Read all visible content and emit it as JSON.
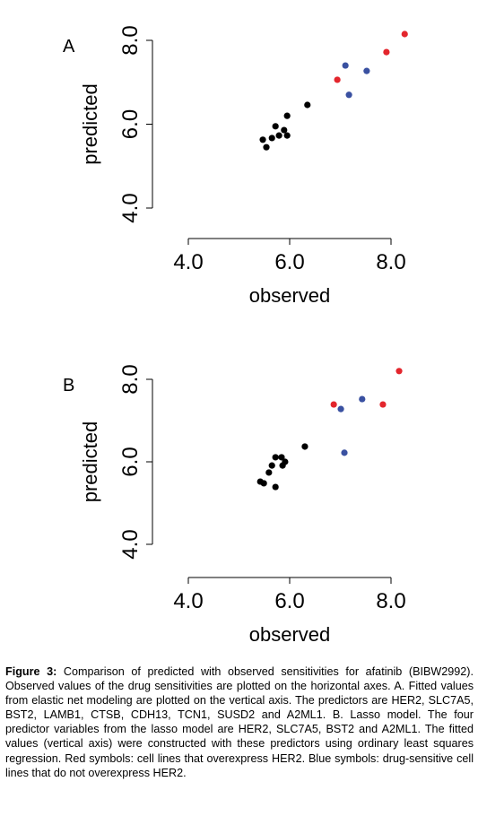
{
  "chart_data": [
    {
      "type": "scatter",
      "label": "A",
      "xlabel": "observed",
      "ylabel": "predicted",
      "xlim": [
        4,
        8
      ],
      "ylim": [
        4,
        8
      ],
      "xticks": [
        {
          "value": 4,
          "label": "4.0"
        },
        {
          "value": 6,
          "label": "6.0"
        },
        {
          "value": 8,
          "label": "8.0"
        }
      ],
      "yticks": [
        {
          "value": 4,
          "label": "4.0"
        },
        {
          "value": 6,
          "label": "6.0"
        },
        {
          "value": 8,
          "label": "8.0"
        }
      ],
      "series": [
        {
          "color": "#e3262d",
          "x": [
            8.27,
            7.91,
            6.94
          ],
          "values": [
            8.15,
            7.72,
            7.06
          ]
        },
        {
          "color": "#3a51a1",
          "x": [
            7.1,
            7.52,
            7.17
          ],
          "values": [
            7.4,
            7.27,
            6.7
          ]
        },
        {
          "color": "#000000",
          "x": [
            6.35,
            5.95,
            5.72,
            5.89,
            5.95,
            5.79,
            5.65,
            5.47,
            5.54
          ],
          "values": [
            6.46,
            6.2,
            5.95,
            5.86,
            5.73,
            5.73,
            5.67,
            5.63,
            5.45
          ]
        }
      ]
    },
    {
      "type": "scatter",
      "label": "B",
      "xlabel": "observed",
      "ylabel": "predicted",
      "xlim": [
        4,
        8
      ],
      "ylim": [
        4,
        8
      ],
      "xticks": [
        {
          "value": 4,
          "label": "4.0"
        },
        {
          "value": 6,
          "label": "6.0"
        },
        {
          "value": 8,
          "label": "8.0"
        }
      ],
      "yticks": [
        {
          "value": 4,
          "label": "4.0"
        },
        {
          "value": 6,
          "label": "6.0"
        },
        {
          "value": 8,
          "label": "8.0"
        }
      ],
      "series": [
        {
          "color": "#e3262d",
          "x": [
            8.16,
            6.87,
            7.84
          ],
          "values": [
            8.2,
            7.39,
            7.39
          ]
        },
        {
          "color": "#3a51a1",
          "x": [
            7.43,
            7.01,
            7.08
          ],
          "values": [
            7.52,
            7.28,
            6.22
          ]
        },
        {
          "color": "#000000",
          "x": [
            6.3,
            5.72,
            5.84,
            5.91,
            5.65,
            5.86,
            5.59,
            5.42,
            5.49,
            5.72
          ],
          "values": [
            6.37,
            6.11,
            6.11,
            6.0,
            5.91,
            5.91,
            5.74,
            5.52,
            5.48,
            5.39
          ]
        }
      ]
    }
  ],
  "caption": {
    "heading": "Figure 3:",
    "text": " Comparison of predicted with observed sensitivities for afatinib (BIBW2992). Observed values of the drug sensitivities are plotted on the horizontal axes. A. Fitted values from elastic net modeling are plotted on the vertical axis. The predictors are HER2, SLC7A5, BST2, LAMB1, CTSB, CDH13, TCN1, SUSD2 and A2ML1. B. Lasso model. The four predictor variables from the lasso model are HER2, SLC7A5, BST2 and A2ML1. The fitted values (vertical axis) were constructed with these predictors using ordinary least squares regression. Red symbols: cell lines that overexpress HER2. Blue symbols: drug-sensitive cell lines that do not overexpress HER2."
  }
}
